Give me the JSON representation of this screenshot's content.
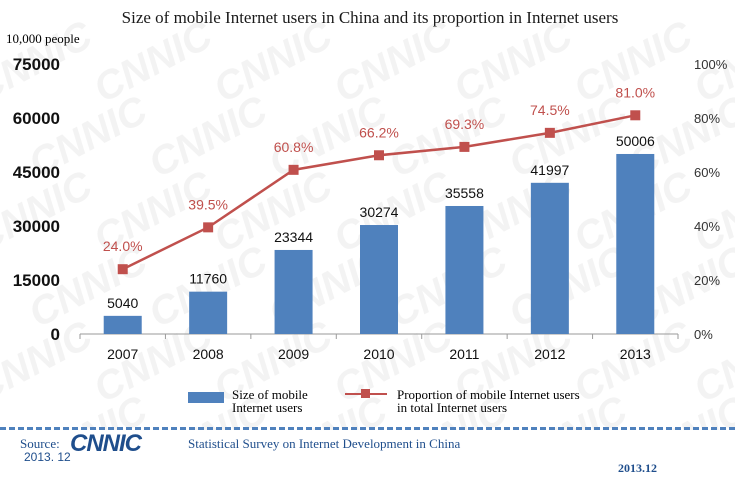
{
  "chart_data": {
    "type": "bar+line",
    "title": "Size of mobile Internet users in China and its proportion in Internet users",
    "ylabel": "10,000 people",
    "categories": [
      "2007",
      "2008",
      "2009",
      "2010",
      "2011",
      "2012",
      "2013"
    ],
    "series": [
      {
        "name": "Size of mobile Internet users",
        "type": "bar",
        "axis": "left",
        "color": "#4f81bd",
        "values": [
          5040,
          11760,
          23344,
          30274,
          35558,
          41997,
          50006
        ],
        "labels": [
          "5040",
          "11760",
          "23344",
          "30274",
          "35558",
          "41997",
          "50006"
        ]
      },
      {
        "name": "Proportion of mobile Internet users in total Internet users",
        "type": "line",
        "axis": "right",
        "color": "#c0504d",
        "values": [
          24.0,
          39.5,
          60.8,
          66.2,
          69.3,
          74.5,
          81.0
        ],
        "labels": [
          "24.0%",
          "39.5%",
          "60.8%",
          "66.2%",
          "69.3%",
          "74.5%",
          "81.0%"
        ]
      }
    ],
    "left_axis": {
      "ylim": [
        0,
        75000
      ],
      "ticks": [
        0,
        15000,
        30000,
        45000,
        60000,
        75000
      ],
      "tick_labels": [
        "0",
        "15000",
        "30000",
        "45000",
        "60000",
        "75000"
      ]
    },
    "right_axis": {
      "ylim": [
        0,
        100
      ],
      "ticks": [
        0,
        20,
        40,
        60,
        80,
        100
      ],
      "tick_labels": [
        "0%",
        "20%",
        "40%",
        "60%",
        "80%",
        "100%"
      ]
    },
    "grid": false,
    "legend_position": "bottom"
  },
  "legend": {
    "bar_label_line1": "Size of mobile",
    "bar_label_line2": "Internet users",
    "line_label_line1": "Proportion of mobile Internet users",
    "line_label_line2": "in total Internet users"
  },
  "footer": {
    "source_label": "Source:",
    "logo_text": "CNNIC",
    "survey_title": "Statistical Survey on Internet Development in China",
    "date_left": "2013. 12",
    "date_right": "2013.12"
  },
  "watermark_text": "CNNIC",
  "colors": {
    "bar": "#4f81bd",
    "line": "#c0504d",
    "footer": "#1f4e8c"
  }
}
